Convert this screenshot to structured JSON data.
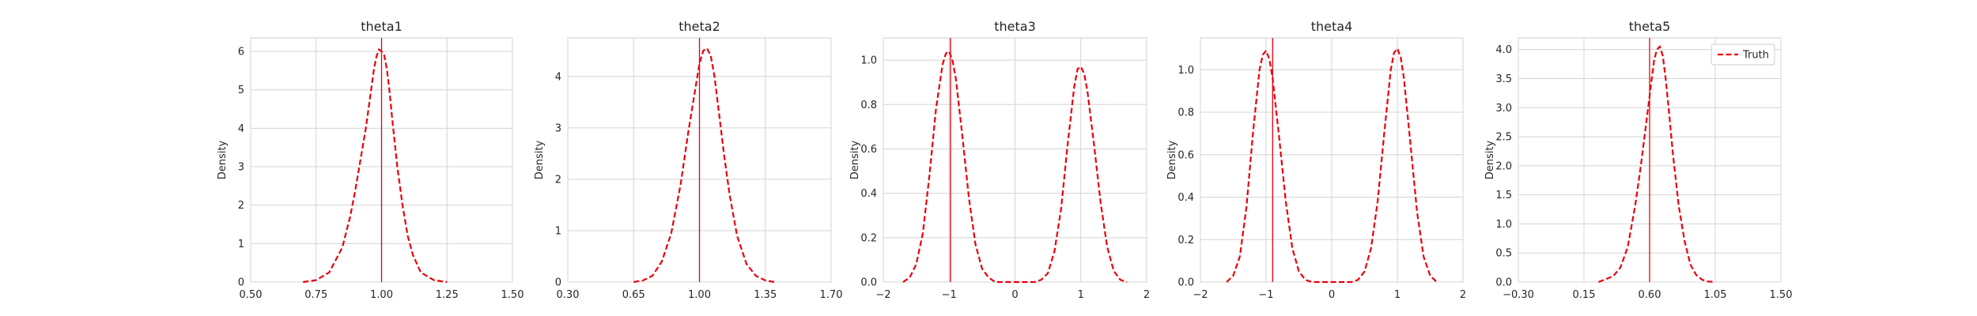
{
  "chart_data": [
    {
      "type": "line",
      "title": "theta1",
      "xlabel": "",
      "ylabel": "Density",
      "xlim": [
        0.5,
        1.5
      ],
      "ylim": [
        0,
        6.35
      ],
      "xticks": [
        0.5,
        0.75,
        1.0,
        1.25,
        1.5
      ],
      "xtick_labels": [
        "0.50",
        "0.75",
        "1.00",
        "1.25",
        "1.50"
      ],
      "yticks": [
        0,
        1,
        2,
        3,
        4,
        5,
        6
      ],
      "ytick_labels": [
        "0",
        "1",
        "2",
        "3",
        "4",
        "5",
        "6"
      ],
      "grid": true,
      "truth": 1.0,
      "series": [
        {
          "x": [
            0.7,
            0.75,
            0.8,
            0.85,
            0.88,
            0.9,
            0.92,
            0.94,
            0.96,
            0.97,
            0.98,
            0.99,
            1.0,
            1.01,
            1.02,
            1.03,
            1.04,
            1.06,
            1.08,
            1.1,
            1.12,
            1.15,
            1.2,
            1.25
          ],
          "y": [
            0.0,
            0.05,
            0.25,
            0.9,
            1.7,
            2.4,
            3.2,
            4.0,
            5.0,
            5.5,
            5.85,
            6.05,
            6.0,
            5.9,
            5.55,
            5.0,
            4.3,
            3.0,
            2.0,
            1.2,
            0.7,
            0.25,
            0.05,
            0.0
          ]
        }
      ]
    },
    {
      "type": "line",
      "title": "theta2",
      "xlabel": "",
      "ylabel": "Density",
      "xlim": [
        0.3,
        1.7
      ],
      "ylim": [
        0,
        4.75
      ],
      "xticks": [
        0.3,
        0.65,
        1.0,
        1.35,
        1.7
      ],
      "xtick_labels": [
        "0.30",
        "0.65",
        "1.00",
        "1.35",
        "1.70"
      ],
      "yticks": [
        0,
        1,
        2,
        3,
        4
      ],
      "ytick_labels": [
        "0",
        "1",
        "2",
        "3",
        "4"
      ],
      "grid": true,
      "truth": 1.0,
      "series": [
        {
          "x": [
            0.65,
            0.7,
            0.75,
            0.8,
            0.85,
            0.9,
            0.94,
            0.98,
            1.0,
            1.02,
            1.04,
            1.06,
            1.08,
            1.1,
            1.13,
            1.16,
            1.2,
            1.25,
            1.3,
            1.35,
            1.4
          ],
          "y": [
            0.0,
            0.03,
            0.12,
            0.4,
            0.95,
            1.9,
            2.9,
            3.8,
            4.25,
            4.5,
            4.55,
            4.4,
            4.0,
            3.4,
            2.5,
            1.7,
            0.9,
            0.35,
            0.12,
            0.03,
            0.0
          ]
        }
      ]
    },
    {
      "type": "line",
      "title": "theta3",
      "xlabel": "",
      "ylabel": "Density",
      "xlim": [
        -2,
        2
      ],
      "ylim": [
        0,
        1.1
      ],
      "xticks": [
        -2,
        -1,
        0,
        1,
        2
      ],
      "xtick_labels": [
        "−2",
        "−1",
        "0",
        "1",
        "2"
      ],
      "yticks": [
        0,
        0.2,
        0.4,
        0.6,
        0.8,
        1.0
      ],
      "ytick_labels": [
        "0.0",
        "0.2",
        "0.4",
        "0.6",
        "0.8",
        "1.0"
      ],
      "grid": true,
      "truth": -0.98,
      "series": [
        {
          "x": [
            -1.7,
            -1.6,
            -1.5,
            -1.4,
            -1.3,
            -1.2,
            -1.1,
            -1.05,
            -1.0,
            -0.95,
            -0.9,
            -0.8,
            -0.7,
            -0.6,
            -0.5,
            -0.4,
            -0.3,
            -0.2,
            0.0,
            0.2,
            0.3,
            0.4,
            0.5,
            0.6,
            0.7,
            0.8,
            0.9,
            0.95,
            1.0,
            1.05,
            1.1,
            1.2,
            1.3,
            1.4,
            1.5,
            1.6,
            1.7
          ],
          "y": [
            0.0,
            0.02,
            0.08,
            0.22,
            0.48,
            0.78,
            0.98,
            1.03,
            1.04,
            1.0,
            0.92,
            0.66,
            0.38,
            0.17,
            0.06,
            0.02,
            0.0,
            0.0,
            0.0,
            0.0,
            0.0,
            0.01,
            0.04,
            0.14,
            0.33,
            0.62,
            0.88,
            0.96,
            0.97,
            0.94,
            0.86,
            0.62,
            0.36,
            0.16,
            0.05,
            0.01,
            0.0
          ]
        }
      ]
    },
    {
      "type": "line",
      "title": "theta4",
      "xlabel": "",
      "ylabel": "Density",
      "xlim": [
        -2,
        2
      ],
      "ylim": [
        0,
        1.15
      ],
      "xticks": [
        -2,
        -1,
        0,
        1,
        2
      ],
      "xtick_labels": [
        "−2",
        "−1",
        "0",
        "1",
        "2"
      ],
      "yticks": [
        0,
        0.2,
        0.4,
        0.6,
        0.8,
        1.0
      ],
      "ytick_labels": [
        "0.0",
        "0.2",
        "0.4",
        "0.6",
        "0.8",
        "1.0"
      ],
      "grid": true,
      "truth": -0.9,
      "series": [
        {
          "x": [
            -1.6,
            -1.5,
            -1.4,
            -1.3,
            -1.2,
            -1.1,
            -1.05,
            -1.0,
            -0.95,
            -0.9,
            -0.8,
            -0.7,
            -0.6,
            -0.5,
            -0.4,
            -0.3,
            -0.2,
            0.0,
            0.2,
            0.3,
            0.4,
            0.5,
            0.6,
            0.7,
            0.8,
            0.9,
            0.95,
            1.0,
            1.05,
            1.1,
            1.2,
            1.3,
            1.4,
            1.5,
            1.6
          ],
          "y": [
            0.0,
            0.03,
            0.12,
            0.35,
            0.7,
            1.0,
            1.07,
            1.09,
            1.05,
            0.96,
            0.68,
            0.38,
            0.16,
            0.05,
            0.01,
            0.0,
            0.0,
            0.0,
            0.0,
            0.0,
            0.01,
            0.05,
            0.16,
            0.38,
            0.7,
            1.0,
            1.08,
            1.1,
            1.06,
            0.96,
            0.65,
            0.33,
            0.12,
            0.03,
            0.0
          ]
        }
      ]
    },
    {
      "type": "line",
      "title": "theta5",
      "xlabel": "",
      "ylabel": "Density",
      "xlim": [
        -0.3,
        1.5
      ],
      "ylim": [
        0,
        4.2
      ],
      "xticks": [
        -0.3,
        0.15,
        0.6,
        1.05,
        1.5
      ],
      "xtick_labels": [
        "−0.30",
        "0.15",
        "0.60",
        "1.05",
        "1.50"
      ],
      "yticks": [
        0,
        0.5,
        1.0,
        1.5,
        2.0,
        2.5,
        3.0,
        3.5,
        4.0
      ],
      "ytick_labels": [
        "0.0",
        "0.5",
        "1.0",
        "1.5",
        "2.0",
        "2.5",
        "3.0",
        "3.5",
        "4.0"
      ],
      "grid": true,
      "truth": 0.6,
      "legend": {
        "position": "top-right",
        "entries": [
          "Truth"
        ]
      },
      "series": [
        {
          "x": [
            0.25,
            0.3,
            0.35,
            0.4,
            0.45,
            0.5,
            0.54,
            0.58,
            0.61,
            0.63,
            0.65,
            0.67,
            0.69,
            0.71,
            0.73,
            0.76,
            0.8,
            0.84,
            0.88,
            0.92,
            0.96,
            1.0,
            1.05
          ],
          "y": [
            0.0,
            0.05,
            0.1,
            0.25,
            0.6,
            1.3,
            2.0,
            2.8,
            3.4,
            3.8,
            4.0,
            4.05,
            3.9,
            3.5,
            3.0,
            2.2,
            1.3,
            0.7,
            0.3,
            0.12,
            0.04,
            0.01,
            0.0
          ]
        }
      ]
    }
  ]
}
